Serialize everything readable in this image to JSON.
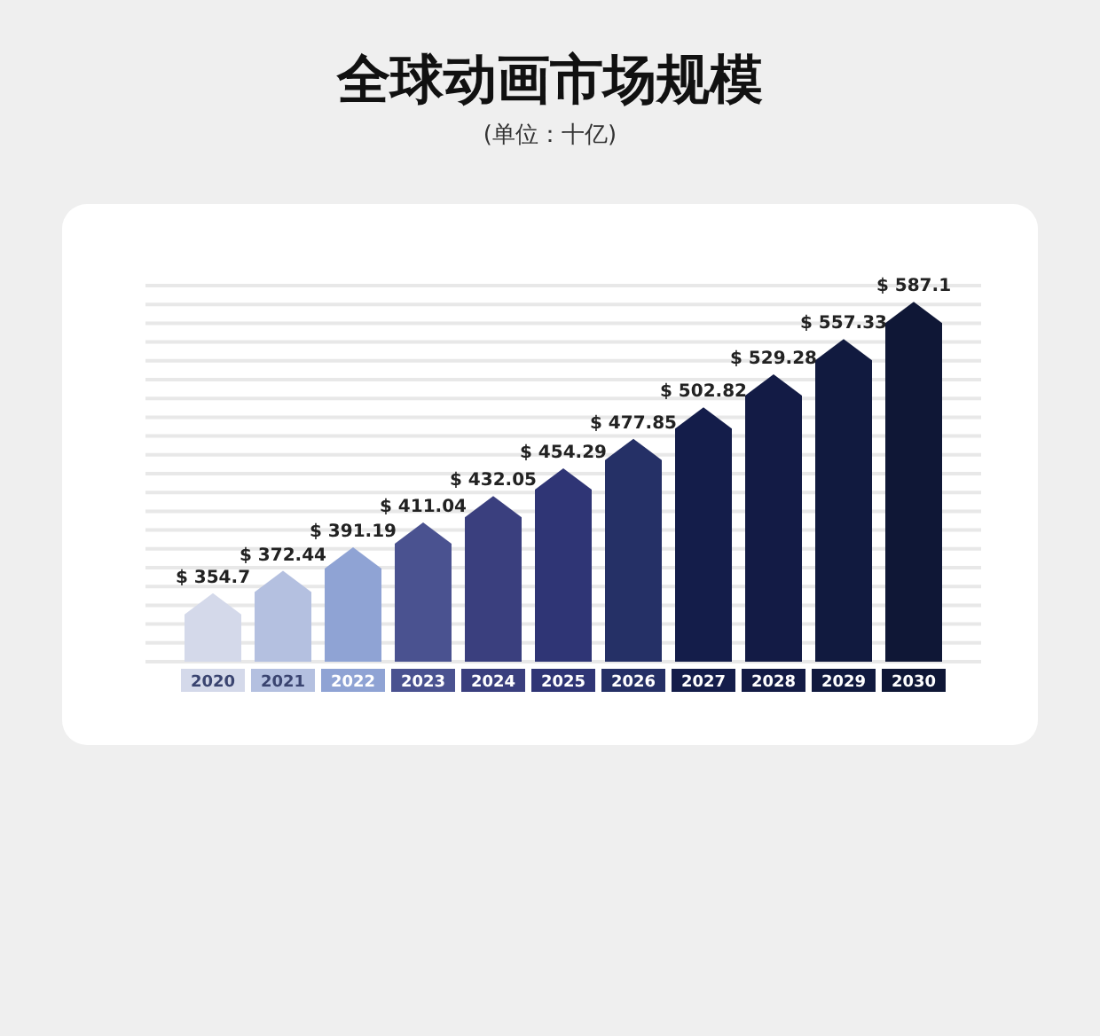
{
  "chart_data": {
    "type": "bar",
    "title": "全球动画市场规模",
    "subtitle": "(单位：十亿)",
    "categories": [
      "2020",
      "2021",
      "2022",
      "2023",
      "2024",
      "2025",
      "2026",
      "2027",
      "2028",
      "2029",
      "2030"
    ],
    "values": [
      354.7,
      372.44,
      391.19,
      411.04,
      432.05,
      454.29,
      477.85,
      502.82,
      529.28,
      557.33,
      587.1
    ],
    "value_labels": [
      "$ 354.7",
      "$ 372.44",
      "$ 391.19",
      "$ 411.04",
      "$ 432.05",
      "$ 454.29",
      "$ 477.85",
      "$ 502.82",
      "$ 529.28",
      "$ 557.33",
      "$ 587.1"
    ],
    "colors": [
      "#d4d9ea",
      "#b4c0e0",
      "#8fa3d4",
      "#4a5290",
      "#3a3f7e",
      "#2f3575",
      "#253066",
      "#141d4a",
      "#131b45",
      "#111a3f",
      "#0f1736"
    ],
    "ylim": [
      300,
      600
    ],
    "yticks": [
      {
        "value": 300,
        "label": null
      },
      {
        "value": 315,
        "label": null
      },
      {
        "value": 330,
        "label": null
      },
      {
        "value": 345,
        "label": null
      },
      {
        "value": 360,
        "label": null
      },
      {
        "value": 375,
        "label": null
      },
      {
        "value": 390,
        "label": null
      },
      {
        "value": 405,
        "label": null
      },
      {
        "value": 420,
        "label": null
      },
      {
        "value": 435,
        "label": null
      },
      {
        "value": 450,
        "label": null
      },
      {
        "value": 465,
        "label": null
      },
      {
        "value": 480,
        "label": null
      },
      {
        "value": 495,
        "label": null
      },
      {
        "value": 510,
        "label": null
      },
      {
        "value": 525,
        "label": null
      },
      {
        "value": 540,
        "label": null
      },
      {
        "value": 555,
        "label": null
      },
      {
        "value": 570,
        "label": null
      },
      {
        "value": 585,
        "label": null
      },
      {
        "value": 600,
        "label": null
      }
    ],
    "grid": "y",
    "tick_labels": "x"
  }
}
